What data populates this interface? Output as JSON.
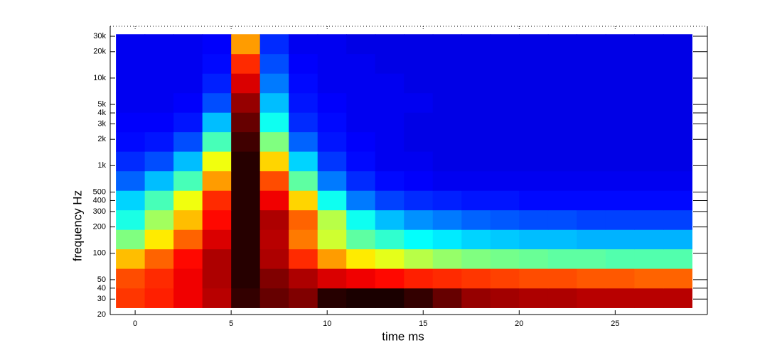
{
  "chart_data": {
    "type": "heatmap",
    "colormap": "jet",
    "x_label": "time   ms",
    "y_label": "frequency   Hz",
    "log_y": true,
    "xlim": [
      -1.3,
      29.8
    ],
    "ylim": [
      20,
      39000
    ],
    "xticks": [
      0,
      5,
      10,
      15,
      20,
      25
    ],
    "yticks": [
      20,
      30,
      40,
      50,
      100,
      200,
      300,
      400,
      500,
      {
        "value": 1000,
        "label": "1k"
      },
      {
        "value": 2000,
        "label": "2k"
      },
      {
        "value": 3000,
        "label": "3k"
      },
      {
        "value": 4000,
        "label": "4k"
      },
      {
        "value": 5000,
        "label": "5k"
      },
      {
        "value": 10000,
        "label": "10k"
      },
      {
        "value": 20000,
        "label": "20k"
      },
      {
        "value": 30000,
        "label": "30k"
      }
    ],
    "x": [
      -0.25,
      1.25,
      2.75,
      4.25,
      5.75,
      7.25,
      8.75,
      10.25,
      11.75,
      13.25,
      14.75,
      16.25,
      17.75,
      19.25,
      20.75,
      22.25,
      23.75,
      25.25,
      26.75,
      28.25
    ],
    "y": [
      31,
      52,
      87,
      145,
      242,
      405,
      675,
      1130,
      1890,
      3150,
      5260,
      8780,
      14700,
      24500
    ],
    "z": [
      [
        74,
        76,
        80,
        85,
        96,
        92,
        90,
        97,
        98,
        98,
        96,
        92,
        88,
        87,
        86,
        86,
        85,
        85,
        85,
        85
      ],
      [
        72,
        75,
        80,
        86,
        97,
        90,
        86,
        82,
        80,
        78,
        76,
        75,
        74,
        73,
        72,
        72,
        71,
        71,
        70,
        70
      ],
      [
        62,
        70,
        78,
        86,
        97,
        86,
        75,
        65,
        58,
        54,
        50,
        47,
        45,
        44,
        43,
        42,
        42,
        41,
        41,
        41
      ],
      [
        45,
        58,
        70,
        82,
        97,
        85,
        68,
        52,
        42,
        38,
        34,
        32,
        30,
        29,
        28,
        28,
        27,
        27,
        27,
        27
      ],
      [
        36,
        48,
        62,
        78,
        97,
        86,
        70,
        50,
        35,
        28,
        24,
        22,
        20,
        19,
        18,
        18,
        17,
        17,
        17,
        17
      ],
      [
        30,
        40,
        55,
        75,
        97,
        80,
        60,
        35,
        22,
        17,
        15,
        14,
        13,
        13,
        12,
        12,
        12,
        12,
        12,
        12
      ],
      [
        20,
        28,
        40,
        65,
        97,
        72,
        42,
        22,
        15,
        12,
        11,
        10,
        10,
        10,
        10,
        10,
        10,
        10,
        10,
        10
      ],
      [
        15,
        18,
        28,
        55,
        97,
        60,
        30,
        16,
        12,
        10,
        10,
        9,
        9,
        9,
        9,
        9,
        9,
        9,
        9,
        9
      ],
      [
        12,
        13,
        18,
        40,
        95,
        45,
        20,
        13,
        11,
        10,
        9,
        9,
        9,
        9,
        9,
        9,
        9,
        9,
        9,
        9
      ],
      [
        11,
        11,
        13,
        28,
        92,
        35,
        15,
        12,
        10,
        10,
        9,
        9,
        9,
        9,
        9,
        9,
        9,
        9,
        9,
        9
      ],
      [
        10,
        10,
        11,
        18,
        88,
        28,
        13,
        11,
        10,
        10,
        10,
        9,
        9,
        9,
        9,
        9,
        9,
        9,
        9,
        9
      ],
      [
        10,
        10,
        10,
        14,
        82,
        22,
        12,
        10,
        10,
        10,
        9,
        9,
        9,
        9,
        9,
        9,
        9,
        9,
        9,
        9
      ],
      [
        10,
        10,
        10,
        12,
        75,
        18,
        11,
        10,
        10,
        9,
        9,
        9,
        9,
        9,
        9,
        9,
        9,
        9,
        9,
        9
      ],
      [
        10,
        10,
        10,
        11,
        65,
        15,
        10,
        10,
        9,
        9,
        9,
        9,
        9,
        9,
        9,
        9,
        9,
        9,
        9,
        9
      ]
    ]
  }
}
